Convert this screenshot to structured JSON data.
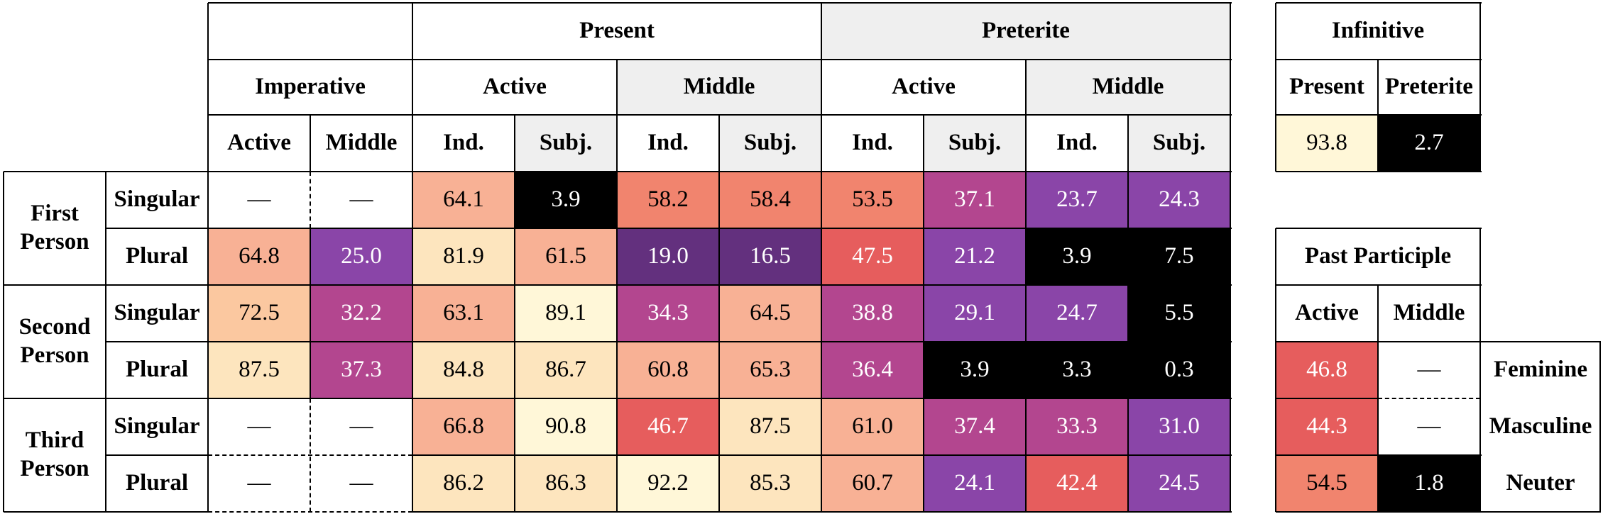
{
  "header": {
    "imperative": "Imperative",
    "present": "Present",
    "preterite": "Preterite",
    "active": "Active",
    "middle": "Middle",
    "ind": "Ind.",
    "subj": "Subj."
  },
  "rows": {
    "first_person": "First Person",
    "second_person": "Second Person",
    "third_person": "Third Person",
    "singular": "Singular",
    "plural": "Plural"
  },
  "main_values": [
    [
      "—",
      "—",
      "64.1",
      "3.9",
      "58.2",
      "58.4",
      "53.5",
      "37.1",
      "23.7",
      "24.3"
    ],
    [
      "64.8",
      "25.0",
      "81.9",
      "61.5",
      "19.0",
      "16.5",
      "47.5",
      "21.2",
      "3.9",
      "7.5"
    ],
    [
      "72.5",
      "32.2",
      "63.1",
      "89.1",
      "34.3",
      "64.5",
      "38.8",
      "29.1",
      "24.7",
      "5.5"
    ],
    [
      "87.5",
      "37.3",
      "84.8",
      "86.7",
      "60.8",
      "65.3",
      "36.4",
      "3.9",
      "3.3",
      "0.3"
    ],
    [
      "—",
      "—",
      "66.8",
      "90.8",
      "46.7",
      "87.5",
      "61.0",
      "37.4",
      "33.3",
      "31.0"
    ],
    [
      "—",
      "—",
      "86.2",
      "86.3",
      "92.2",
      "85.3",
      "60.7",
      "24.1",
      "42.4",
      "24.5"
    ]
  ],
  "infinitive": {
    "title": "Infinitive",
    "present": "Present",
    "preterite": "Preterite",
    "values": [
      "93.8",
      "2.7"
    ]
  },
  "participle": {
    "title": "Past Participle",
    "active": "Active",
    "middle": "Middle",
    "genders": [
      "Feminine",
      "Masculine",
      "Neuter"
    ],
    "values": [
      [
        "46.8",
        "—"
      ],
      [
        "44.3",
        "—"
      ],
      [
        "54.5",
        "1.8"
      ]
    ]
  },
  "colors": {
    "cream": "#fff7d8",
    "light_peach": "#fde5be",
    "peach": "#fbc8a0",
    "salmon": "#f8b195",
    "coral": "#f1846e",
    "red_coral": "#e65d5d",
    "magenta": "#b3468f",
    "purple": "#8a45a8",
    "dark_purple": "#63307e",
    "black": "#000000",
    "white_cell": "#ffffff"
  }
}
